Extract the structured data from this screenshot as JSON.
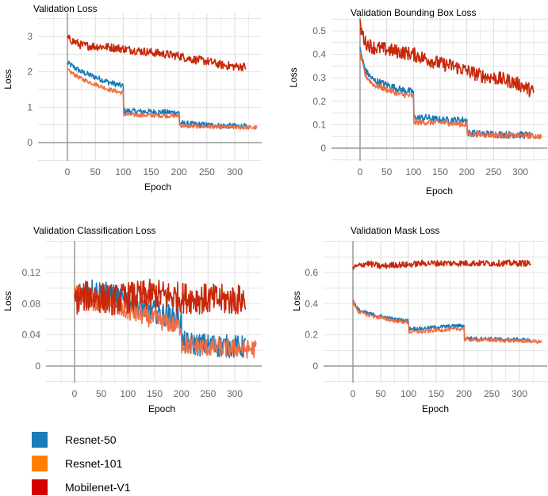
{
  "chart_data": [
    {
      "type": "line",
      "title": "Validation Loss",
      "xlabel": "Epoch",
      "ylabel": "Loss",
      "xlim": [
        -50,
        340
      ],
      "ylim": [
        -0.55,
        3.45
      ],
      "xticks": [
        0,
        50,
        100,
        150,
        200,
        250,
        300
      ],
      "yticks": [
        0,
        1,
        2,
        3
      ],
      "grid": true,
      "series": [
        {
          "name": "Resnet-50",
          "color": "#1a7bb9",
          "x": [
            0,
            25,
            50,
            75,
            100,
            101,
            125,
            150,
            175,
            200,
            201,
            225,
            250,
            275,
            300,
            320
          ],
          "y": [
            2.25,
            2.0,
            1.85,
            1.7,
            1.6,
            0.9,
            0.88,
            0.87,
            0.86,
            0.85,
            0.55,
            0.52,
            0.5,
            0.48,
            0.47,
            0.46
          ],
          "noise": 0.08
        },
        {
          "name": "Resnet-101",
          "color": "#f06e45",
          "x": [
            0,
            25,
            50,
            75,
            100,
            101,
            125,
            150,
            175,
            200,
            201,
            225,
            250,
            275,
            300,
            320,
            340
          ],
          "y": [
            2.05,
            1.8,
            1.65,
            1.5,
            1.4,
            0.8,
            0.78,
            0.77,
            0.76,
            0.75,
            0.48,
            0.46,
            0.45,
            0.44,
            0.43,
            0.43,
            0.42
          ],
          "noise": 0.06
        },
        {
          "name": "Mobilenet-V1",
          "color": "#c8280a",
          "x": [
            0,
            25,
            50,
            75,
            100,
            125,
            150,
            175,
            200,
            225,
            250,
            275,
            300,
            320
          ],
          "y": [
            2.95,
            2.75,
            2.72,
            2.7,
            2.65,
            2.6,
            2.55,
            2.5,
            2.45,
            2.35,
            2.3,
            2.2,
            2.15,
            2.15
          ],
          "noise": 0.12
        }
      ]
    },
    {
      "type": "line",
      "title": "Validation Bounding Box Loss",
      "xlabel": "Epoch",
      "ylabel": "Loss",
      "xlim": [
        -50,
        340
      ],
      "ylim": [
        -0.05,
        0.55
      ],
      "xticks": [
        0,
        50,
        100,
        150,
        200,
        250,
        300
      ],
      "yticks": [
        0,
        0.1,
        0.2,
        0.3,
        0.4,
        0.5
      ],
      "grid": true,
      "series": [
        {
          "name": "Resnet-50",
          "color": "#1a7bb9",
          "x": [
            0,
            10,
            25,
            50,
            75,
            100,
            101,
            125,
            150,
            175,
            200,
            201,
            225,
            250,
            275,
            300,
            320
          ],
          "y": [
            0.42,
            0.33,
            0.29,
            0.27,
            0.25,
            0.24,
            0.13,
            0.13,
            0.12,
            0.12,
            0.12,
            0.065,
            0.062,
            0.06,
            0.058,
            0.057,
            0.055
          ],
          "noise": 0.015
        },
        {
          "name": "Resnet-101",
          "color": "#f06e45",
          "x": [
            0,
            10,
            25,
            50,
            75,
            100,
            101,
            125,
            150,
            175,
            200,
            201,
            225,
            250,
            275,
            300,
            320,
            340
          ],
          "y": [
            0.4,
            0.31,
            0.27,
            0.25,
            0.23,
            0.22,
            0.11,
            0.11,
            0.11,
            0.105,
            0.1,
            0.06,
            0.058,
            0.056,
            0.054,
            0.053,
            0.052,
            0.05
          ],
          "noise": 0.012
        },
        {
          "name": "Mobilenet-V1",
          "color": "#c8280a",
          "x": [
            0,
            10,
            25,
            50,
            75,
            100,
            125,
            150,
            175,
            200,
            225,
            250,
            275,
            300,
            325
          ],
          "y": [
            0.52,
            0.45,
            0.43,
            0.42,
            0.41,
            0.4,
            0.38,
            0.36,
            0.35,
            0.33,
            0.31,
            0.3,
            0.29,
            0.27,
            0.24
          ],
          "noise": 0.03
        }
      ]
    },
    {
      "type": "line",
      "title": "Validation Classification Loss",
      "xlabel": "Epoch",
      "ylabel": "Loss",
      "xlim": [
        -50,
        340
      ],
      "ylim": [
        -0.022,
        0.158
      ],
      "xticks": [
        0,
        50,
        100,
        150,
        200,
        250,
        300
      ],
      "yticks": [
        0,
        0.04,
        0.08,
        0.12
      ],
      "grid": true,
      "series": [
        {
          "name": "Resnet-50",
          "color": "#1a7bb9",
          "x": [
            0,
            25,
            50,
            75,
            100,
            125,
            150,
            175,
            200,
            201,
            225,
            250,
            275,
            300,
            320
          ],
          "y": [
            0.09,
            0.1,
            0.095,
            0.09,
            0.085,
            0.075,
            0.07,
            0.065,
            0.06,
            0.03,
            0.028,
            0.027,
            0.026,
            0.025,
            0.024
          ],
          "noise": 0.015
        },
        {
          "name": "Resnet-101",
          "color": "#f06e45",
          "x": [
            0,
            25,
            50,
            75,
            100,
            125,
            150,
            175,
            200,
            201,
            225,
            250,
            275,
            300,
            320,
            340
          ],
          "y": [
            0.095,
            0.085,
            0.08,
            0.075,
            0.07,
            0.065,
            0.06,
            0.055,
            0.05,
            0.027,
            0.025,
            0.024,
            0.023,
            0.023,
            0.022,
            0.022
          ],
          "noise": 0.012
        },
        {
          "name": "Mobilenet-V1",
          "color": "#c8280a",
          "x": [
            0,
            25,
            50,
            75,
            100,
            125,
            150,
            175,
            200,
            225,
            250,
            275,
            300,
            320
          ],
          "y": [
            0.085,
            0.09,
            0.088,
            0.085,
            0.088,
            0.09,
            0.092,
            0.09,
            0.088,
            0.087,
            0.086,
            0.085,
            0.085,
            0.085
          ],
          "noise": 0.02
        }
      ]
    },
    {
      "type": "line",
      "title": "Validation Mask Loss",
      "xlabel": "Epoch",
      "ylabel": "Loss",
      "xlim": [
        -50,
        340
      ],
      "ylim": [
        -0.11,
        0.79
      ],
      "xticks": [
        0,
        50,
        100,
        150,
        200,
        250,
        300
      ],
      "yticks": [
        0,
        0.2,
        0.4,
        0.6
      ],
      "grid": true,
      "series": [
        {
          "name": "Resnet-50",
          "color": "#1a7bb9",
          "x": [
            0,
            10,
            25,
            50,
            75,
            100,
            101,
            125,
            150,
            175,
            200,
            201,
            225,
            250,
            275,
            300,
            320
          ],
          "y": [
            0.42,
            0.36,
            0.34,
            0.32,
            0.3,
            0.29,
            0.24,
            0.24,
            0.25,
            0.255,
            0.26,
            0.18,
            0.175,
            0.175,
            0.17,
            0.17,
            0.165
          ],
          "noise": 0.012
        },
        {
          "name": "Resnet-101",
          "color": "#f06e45",
          "x": [
            0,
            10,
            25,
            50,
            75,
            100,
            101,
            125,
            150,
            175,
            200,
            201,
            225,
            250,
            275,
            300,
            320,
            340
          ],
          "y": [
            0.41,
            0.35,
            0.33,
            0.31,
            0.29,
            0.28,
            0.22,
            0.22,
            0.23,
            0.235,
            0.24,
            0.17,
            0.168,
            0.166,
            0.164,
            0.162,
            0.16,
            0.155
          ],
          "noise": 0.012
        },
        {
          "name": "Mobilenet-V1",
          "color": "#c8280a",
          "x": [
            0,
            25,
            50,
            75,
            100,
            125,
            150,
            175,
            200,
            225,
            250,
            275,
            300,
            320
          ],
          "y": [
            0.63,
            0.66,
            0.64,
            0.65,
            0.65,
            0.66,
            0.66,
            0.66,
            0.66,
            0.66,
            0.66,
            0.66,
            0.66,
            0.66
          ],
          "noise": 0.02
        }
      ]
    }
  ],
  "legend": {
    "placement": "bottom-left",
    "items": [
      {
        "label": "Resnet-50",
        "color": "#1a7bb9"
      },
      {
        "label": "Resnet-101",
        "color": "#ff8000"
      },
      {
        "label": "Mobilenet-V1",
        "color": "#d40000"
      }
    ]
  }
}
